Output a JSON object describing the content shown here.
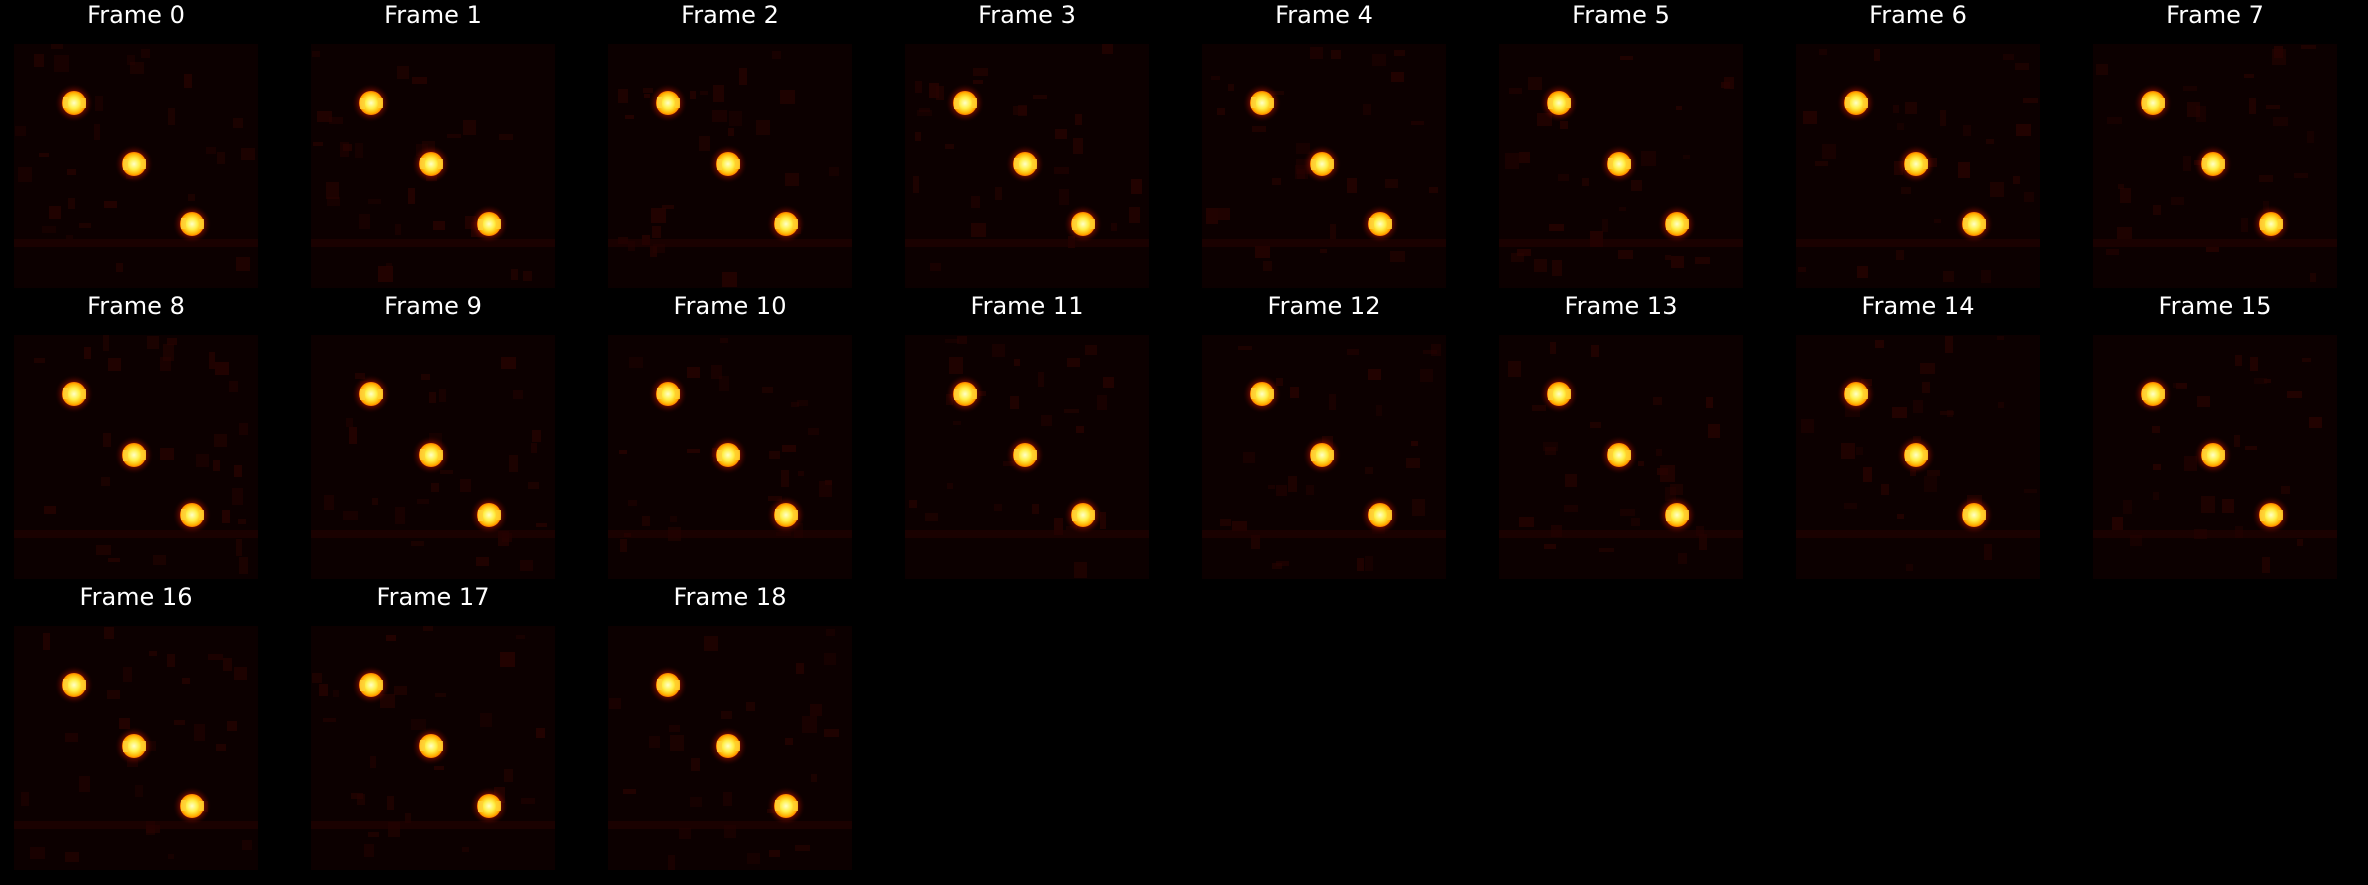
{
  "figure": {
    "background": "#000000",
    "text_color": "#ffffff",
    "colormap": "hot",
    "frames": [
      {
        "title": "Frame 0"
      },
      {
        "title": "Frame 1"
      },
      {
        "title": "Frame 2"
      },
      {
        "title": "Frame 3"
      },
      {
        "title": "Frame 4"
      },
      {
        "title": "Frame 5"
      },
      {
        "title": "Frame 6"
      },
      {
        "title": "Frame 7"
      },
      {
        "title": "Frame 8"
      },
      {
        "title": "Frame 9"
      },
      {
        "title": "Frame 10"
      },
      {
        "title": "Frame 11"
      },
      {
        "title": "Frame 12"
      },
      {
        "title": "Frame 13"
      },
      {
        "title": "Frame 14"
      },
      {
        "title": "Frame 15"
      },
      {
        "title": "Frame 16"
      },
      {
        "title": "Frame 17"
      },
      {
        "title": "Frame 18"
      }
    ]
  }
}
